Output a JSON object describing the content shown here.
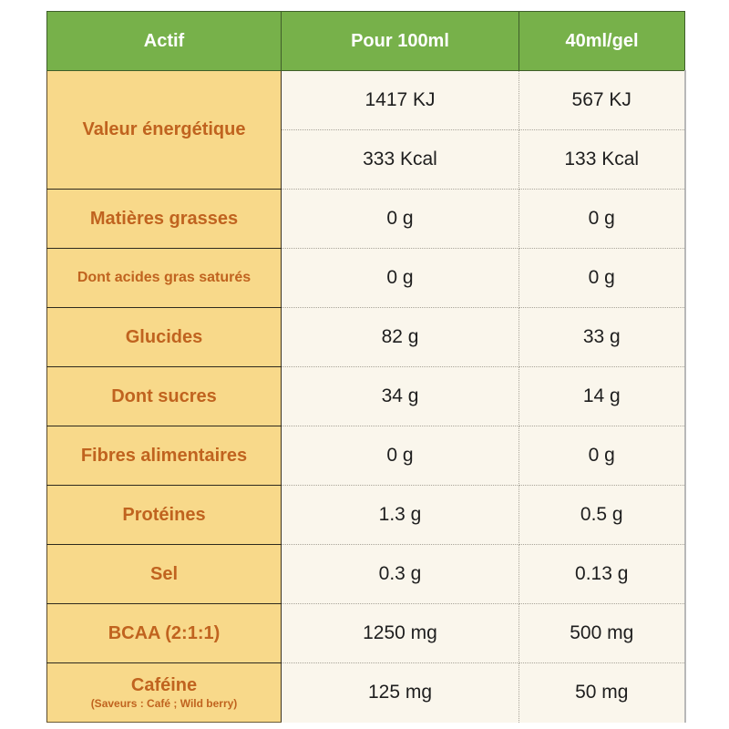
{
  "header": {
    "columns": [
      "Actif",
      "Pour 100ml",
      "40ml/gel"
    ]
  },
  "energy": {
    "label": "Valeur énergétique",
    "per_100ml": [
      "1417 KJ",
      "333 Kcal"
    ],
    "per_gel": [
      "567 KJ",
      "133 Kcal"
    ]
  },
  "rows": [
    {
      "label": "Matières grasses",
      "per_100ml": "0 g",
      "per_gel": "0 g"
    },
    {
      "label": "Dont acides gras saturés",
      "per_100ml": "0 g",
      "per_gel": "0 g"
    },
    {
      "label": "Glucides",
      "per_100ml": "82 g",
      "per_gel": "33 g"
    },
    {
      "label": "Dont sucres",
      "per_100ml": "34 g",
      "per_gel": "14 g"
    },
    {
      "label": "Fibres alimentaires",
      "per_100ml": "0 g",
      "per_gel": "0 g"
    },
    {
      "label": "Protéines",
      "per_100ml": "1.3 g",
      "per_gel": "0.5 g"
    },
    {
      "label": "Sel",
      "per_100ml": "0.3 g",
      "per_gel": "0.13 g"
    },
    {
      "label": "BCAA (2:1:1)",
      "per_100ml": "1250 mg",
      "per_gel": "500 mg"
    },
    {
      "label": "Caféine",
      "sublabel": "(Saveurs : Café ; Wild berry)",
      "per_100ml": "125 mg",
      "per_gel": "50 mg"
    }
  ],
  "colors": {
    "header_bg": "#77b14a",
    "label_bg": "#f8d98a",
    "label_text": "#c0631f",
    "cell_bg": "#faf6ec"
  }
}
